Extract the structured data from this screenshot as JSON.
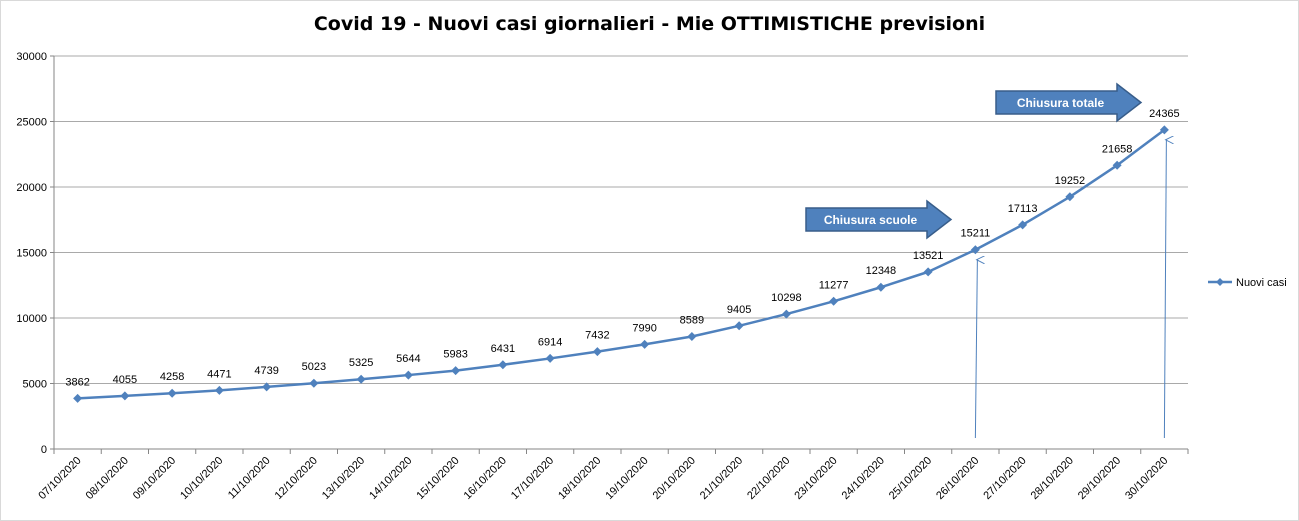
{
  "chart_data": {
    "type": "line",
    "title": "Covid 19 - Nuovi casi giornalieri - Mie OTTIMISTICHE previsioni",
    "xlabel": "",
    "ylabel": "",
    "ylim": [
      0,
      30000
    ],
    "yticks": [
      "0",
      "5000",
      "10000",
      "15000",
      "20000",
      "25000",
      "30000"
    ],
    "grid": true,
    "legend_position": "right",
    "categories": [
      "07/10/2020",
      "08/10/2020",
      "09/10/2020",
      "10/10/2020",
      "11/10/2020",
      "12/10/2020",
      "13/10/2020",
      "14/10/2020",
      "15/10/2020",
      "16/10/2020",
      "17/10/2020",
      "18/10/2020",
      "19/10/2020",
      "20/10/2020",
      "21/10/2020",
      "22/10/2020",
      "23/10/2020",
      "24/10/2020",
      "25/10/2020",
      "26/10/2020",
      "27/10/2020",
      "28/10/2020",
      "29/10/2020",
      "30/10/2020"
    ],
    "series": [
      {
        "name": "Nuovi casi",
        "color": "#4f81bd",
        "values": [
          3862,
          4055,
          4258,
          4471,
          4739,
          5023,
          5325,
          5644,
          5983,
          6431,
          6914,
          7432,
          7990,
          8589,
          9405,
          10298,
          11277,
          12348,
          13521,
          15211,
          17113,
          19252,
          21658,
          24365
        ]
      }
    ],
    "annotations": [
      {
        "text": "Chiusura scuole",
        "category": "26/10/2020"
      },
      {
        "text": "Chiusura totale",
        "category": "30/10/2020"
      }
    ]
  }
}
